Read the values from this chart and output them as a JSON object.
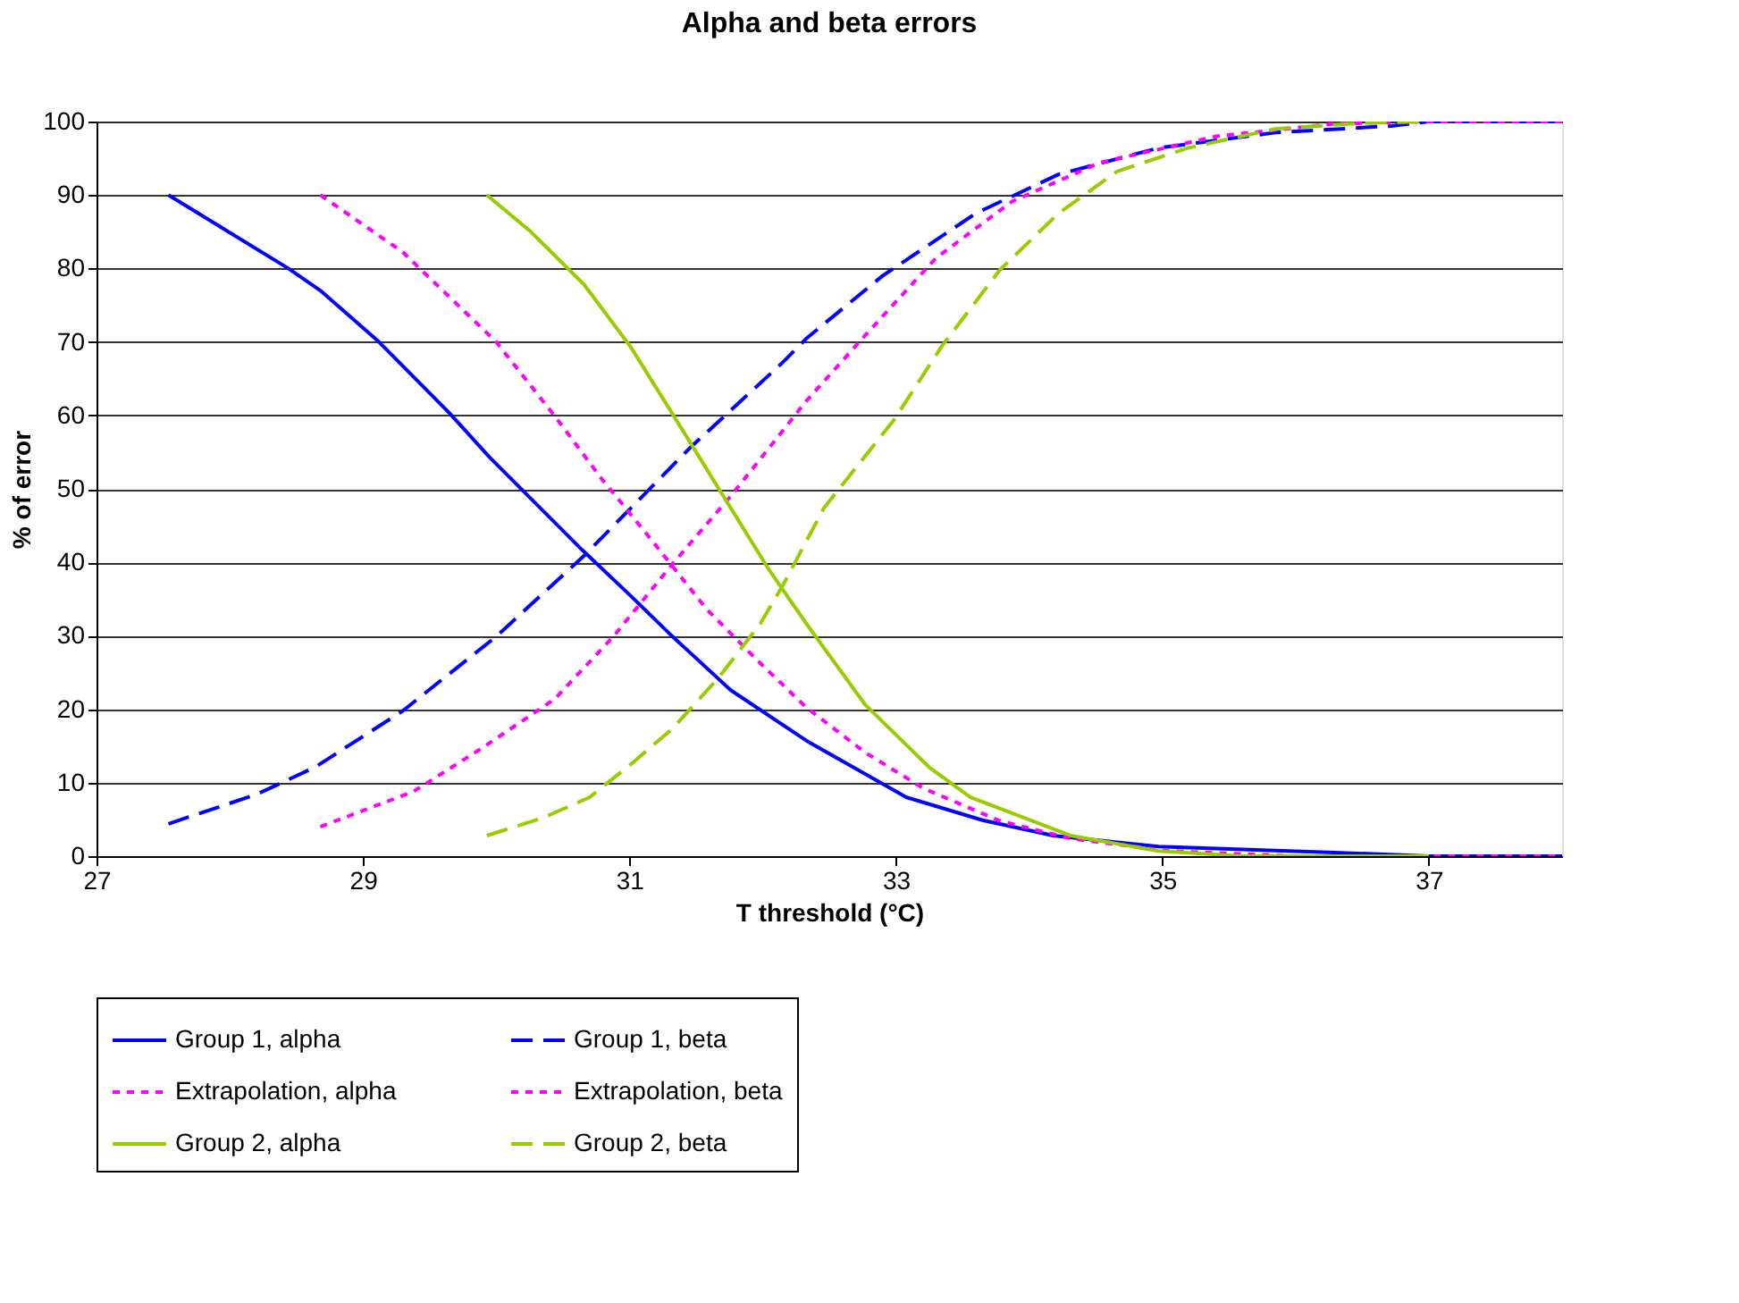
{
  "chart_data": {
    "type": "line",
    "title": "Alpha and beta errors",
    "xlabel": "T threshold (°C)",
    "ylabel": "% of error",
    "xlim": [
      27,
      38
    ],
    "xticks": [
      27,
      29,
      31,
      33,
      35,
      37
    ],
    "ylim": [
      0,
      100
    ],
    "yticks": [
      0,
      10,
      20,
      30,
      40,
      50,
      60,
      70,
      80,
      90,
      100
    ],
    "grid": "y",
    "legend": "bottom",
    "series": [
      {
        "name": "Group 1, alpha",
        "color": "#0000ff",
        "line_style": "solid",
        "x": [
          27.54,
          28.44,
          28.68,
          29.12,
          29.65,
          29.95,
          30.65,
          31.0,
          31.3,
          31.76,
          32.33,
          33.08,
          33.65,
          34.18,
          34.97,
          36.29,
          37.0,
          38.0
        ],
        "values": [
          90,
          80,
          77,
          70,
          60.3,
          54.3,
          41.6,
          35.6,
          30.3,
          22.6,
          15.7,
          8,
          4.9,
          2.8,
          1.3,
          0.5,
          0,
          0
        ]
      },
      {
        "name": "Group 1, beta",
        "color": "#0000ff",
        "line_style": "dashed",
        "x": [
          27.54,
          28.2,
          28.64,
          29.3,
          30.0,
          30.66,
          31.45,
          32.15,
          32.33,
          32.9,
          33.6,
          34.22,
          34.97,
          35.85,
          36.72,
          37.0,
          38.0
        ],
        "values": [
          4.4,
          8.4,
          12.1,
          19.8,
          29.9,
          40.9,
          55.5,
          67.2,
          70.5,
          79,
          87.5,
          92.8,
          96.4,
          98.5,
          99.4,
          100,
          100
        ]
      },
      {
        "name": "Extrapolation, alpha",
        "color": "#ff00ff",
        "line_style": "dotted",
        "x": [
          28.68,
          29.3,
          30.0,
          30.44,
          30.79,
          31.19,
          31.58,
          31.98,
          32.33,
          32.77,
          33.21,
          33.78,
          34.31,
          35.06,
          36.0,
          38.0
        ],
        "values": [
          90,
          82.2,
          70,
          59.9,
          51.4,
          42.5,
          33.6,
          26.3,
          20.2,
          14.1,
          9.2,
          4.8,
          2.4,
          0.7,
          0,
          0
        ]
      },
      {
        "name": "Extrapolation, beta",
        "color": "#ff00ff",
        "line_style": "dotted",
        "x": [
          28.68,
          29.38,
          29.91,
          30.44,
          30.88,
          31.32,
          31.76,
          32.33,
          32.77,
          33.3,
          33.87,
          34.53,
          35.41,
          36.29,
          37.0,
          38.0
        ],
        "values": [
          4,
          8.8,
          14.9,
          21.4,
          29.9,
          39.7,
          49,
          62,
          70.9,
          81.4,
          89.1,
          94.4,
          98,
          99.7,
          100,
          100
        ]
      },
      {
        "name": "Group 2, alpha",
        "color": "#99cc00",
        "line_style": "solid",
        "x": [
          29.93,
          30.26,
          30.66,
          31.01,
          31.32,
          31.76,
          32.04,
          32.33,
          32.77,
          33.25,
          33.56,
          34.31,
          34.97,
          35.6,
          37.0
        ],
        "values": [
          90,
          85,
          77.8,
          69.3,
          60.3,
          47.4,
          39.2,
          31.6,
          20.6,
          12.1,
          8,
          2.8,
          0.7,
          0,
          0
        ]
      },
      {
        "name": "Group 2, beta",
        "color": "#99cc00",
        "line_style": "dashed",
        "x": [
          29.93,
          30.35,
          30.7,
          31.01,
          31.32,
          31.67,
          31.98,
          32.15,
          32.46,
          32.99,
          33.34,
          33.78,
          34.22,
          34.66,
          35.19,
          35.85,
          36.5,
          37.0
        ],
        "values": [
          2.8,
          5.2,
          8,
          12.5,
          17.3,
          24.3,
          31.6,
          36.8,
          47.4,
          59.5,
          69.3,
          79.8,
          87.5,
          93.2,
          96.4,
          99,
          99.8,
          100
        ]
      }
    ]
  }
}
